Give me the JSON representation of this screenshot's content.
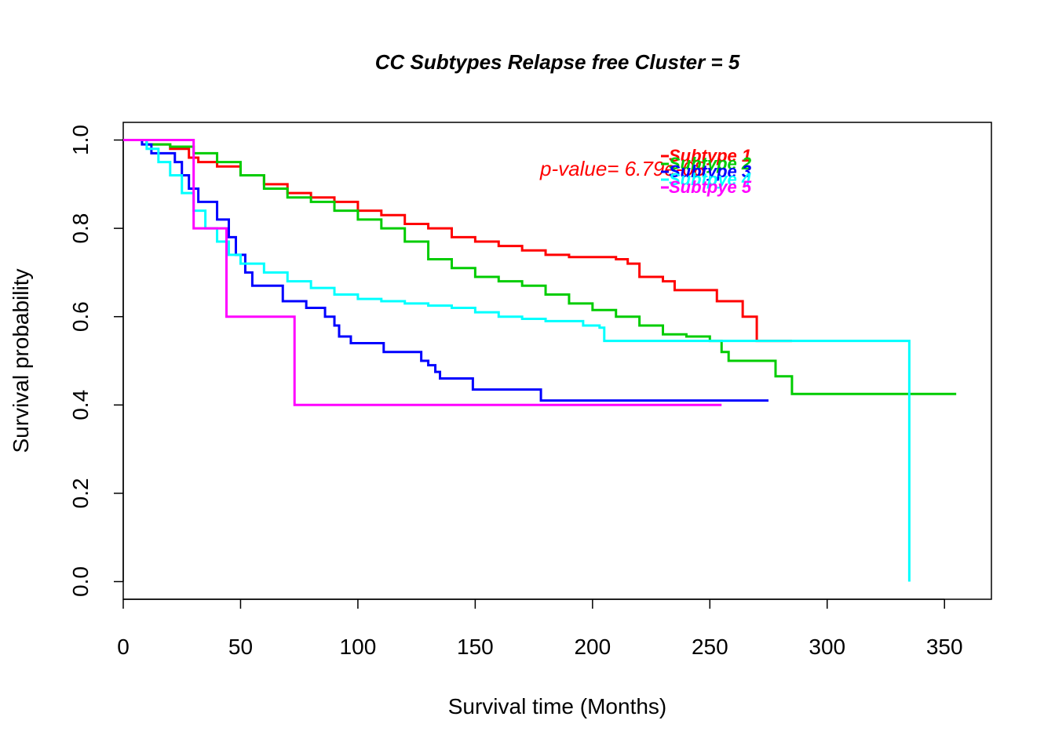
{
  "chart_data": {
    "type": "line",
    "title": "CC Subtypes Relapse free Cluster = 5",
    "xlabel": "Survival time (Months)",
    "ylabel": "Survival probability",
    "xlim": [
      0,
      370
    ],
    "ylim": [
      -0.04,
      1.04
    ],
    "x_ticks": [
      "0",
      "50",
      "100",
      "150",
      "200",
      "250",
      "300",
      "350"
    ],
    "y_ticks": [
      "0.0",
      "0.2",
      "0.4",
      "0.6",
      "0.8",
      "1.0"
    ],
    "grid": false,
    "legend_position": "top-right",
    "annotation": "p-value= 6.79e-08",
    "series": [
      {
        "name": "Subtype 1",
        "color": "#ff0000",
        "points": [
          [
            0,
            1.0
          ],
          [
            10,
            0.99
          ],
          [
            20,
            0.98
          ],
          [
            28,
            0.96
          ],
          [
            32,
            0.95
          ],
          [
            40,
            0.94
          ],
          [
            50,
            0.92
          ],
          [
            60,
            0.9
          ],
          [
            70,
            0.88
          ],
          [
            80,
            0.87
          ],
          [
            90,
            0.86
          ],
          [
            100,
            0.84
          ],
          [
            110,
            0.83
          ],
          [
            120,
            0.81
          ],
          [
            130,
            0.8
          ],
          [
            140,
            0.78
          ],
          [
            150,
            0.77
          ],
          [
            160,
            0.76
          ],
          [
            170,
            0.75
          ],
          [
            180,
            0.74
          ],
          [
            190,
            0.735
          ],
          [
            200,
            0.735
          ],
          [
            210,
            0.73
          ],
          [
            215,
            0.72
          ],
          [
            220,
            0.69
          ],
          [
            230,
            0.68
          ],
          [
            235,
            0.66
          ],
          [
            250,
            0.66
          ],
          [
            253,
            0.635
          ],
          [
            262,
            0.635
          ],
          [
            264,
            0.6
          ],
          [
            270,
            0.6
          ],
          [
            270,
            0.545
          ],
          [
            285,
            0.545
          ]
        ]
      },
      {
        "name": "Subtype 2",
        "color": "#00cc00",
        "points": [
          [
            0,
            1.0
          ],
          [
            10,
            0.99
          ],
          [
            20,
            0.985
          ],
          [
            30,
            0.97
          ],
          [
            40,
            0.95
          ],
          [
            50,
            0.92
          ],
          [
            60,
            0.89
          ],
          [
            70,
            0.87
          ],
          [
            80,
            0.86
          ],
          [
            90,
            0.84
          ],
          [
            100,
            0.82
          ],
          [
            110,
            0.8
          ],
          [
            120,
            0.77
          ],
          [
            130,
            0.73
          ],
          [
            140,
            0.71
          ],
          [
            150,
            0.69
          ],
          [
            160,
            0.68
          ],
          [
            170,
            0.67
          ],
          [
            180,
            0.65
          ],
          [
            190,
            0.63
          ],
          [
            200,
            0.615
          ],
          [
            210,
            0.6
          ],
          [
            220,
            0.58
          ],
          [
            230,
            0.56
          ],
          [
            240,
            0.555
          ],
          [
            250,
            0.545
          ],
          [
            255,
            0.52
          ],
          [
            258,
            0.5
          ],
          [
            278,
            0.5
          ],
          [
            278,
            0.465
          ],
          [
            285,
            0.465
          ],
          [
            285,
            0.425
          ],
          [
            355,
            0.425
          ]
        ]
      },
      {
        "name": "Subtype 3",
        "color": "#0000ff",
        "points": [
          [
            0,
            1.0
          ],
          [
            8,
            0.99
          ],
          [
            12,
            0.97
          ],
          [
            20,
            0.97
          ],
          [
            22,
            0.95
          ],
          [
            25,
            0.92
          ],
          [
            28,
            0.89
          ],
          [
            32,
            0.86
          ],
          [
            38,
            0.86
          ],
          [
            40,
            0.82
          ],
          [
            45,
            0.78
          ],
          [
            48,
            0.74
          ],
          [
            52,
            0.7
          ],
          [
            55,
            0.67
          ],
          [
            68,
            0.67
          ],
          [
            68,
            0.635
          ],
          [
            77,
            0.635
          ],
          [
            78,
            0.62
          ],
          [
            85,
            0.62
          ],
          [
            86,
            0.6
          ],
          [
            90,
            0.58
          ],
          [
            92,
            0.555
          ],
          [
            97,
            0.54
          ],
          [
            111,
            0.54
          ],
          [
            111,
            0.52
          ],
          [
            125,
            0.52
          ],
          [
            127,
            0.5
          ],
          [
            130,
            0.49
          ],
          [
            133,
            0.475
          ],
          [
            135,
            0.46
          ],
          [
            148,
            0.46
          ],
          [
            149,
            0.435
          ],
          [
            178,
            0.435
          ],
          [
            178,
            0.41
          ],
          [
            275,
            0.41
          ]
        ]
      },
      {
        "name": "Subtpye 4",
        "color": "#00ffff",
        "points": [
          [
            0,
            1.0
          ],
          [
            10,
            0.98
          ],
          [
            15,
            0.95
          ],
          [
            20,
            0.92
          ],
          [
            25,
            0.88
          ],
          [
            30,
            0.84
          ],
          [
            35,
            0.8
          ],
          [
            40,
            0.77
          ],
          [
            45,
            0.74
          ],
          [
            50,
            0.72
          ],
          [
            60,
            0.7
          ],
          [
            70,
            0.68
          ],
          [
            80,
            0.665
          ],
          [
            90,
            0.65
          ],
          [
            100,
            0.64
          ],
          [
            110,
            0.635
          ],
          [
            120,
            0.63
          ],
          [
            130,
            0.625
          ],
          [
            140,
            0.62
          ],
          [
            150,
            0.61
          ],
          [
            160,
            0.6
          ],
          [
            170,
            0.595
          ],
          [
            180,
            0.59
          ],
          [
            195,
            0.59
          ],
          [
            196,
            0.58
          ],
          [
            203,
            0.575
          ],
          [
            205,
            0.545
          ],
          [
            335,
            0.545
          ],
          [
            335,
            0.0
          ]
        ]
      },
      {
        "name": "Subtpye 5",
        "color": "#ff00ff",
        "points": [
          [
            0,
            1.0
          ],
          [
            30,
            1.0
          ],
          [
            30,
            0.8
          ],
          [
            44,
            0.8
          ],
          [
            44,
            0.6
          ],
          [
            73,
            0.6
          ],
          [
            73,
            0.4
          ],
          [
            255,
            0.4
          ]
        ]
      }
    ]
  }
}
